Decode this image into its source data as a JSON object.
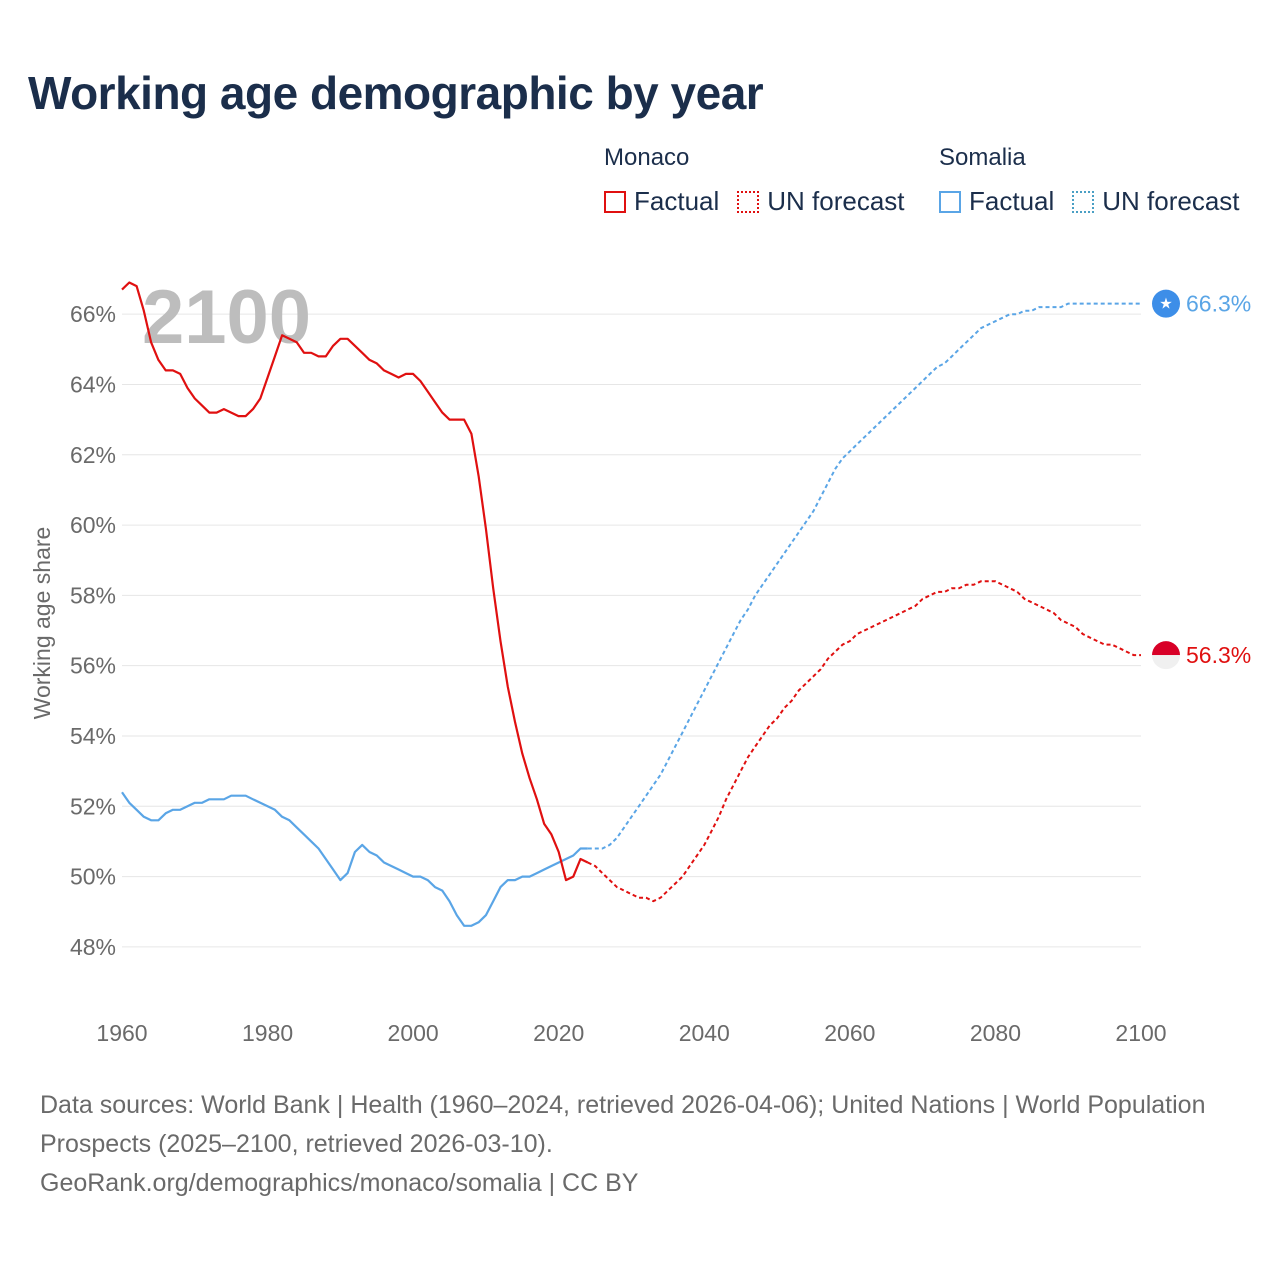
{
  "chart_data": {
    "type": "line",
    "title": "Working age demographic by year",
    "ylabel": "Working age share",
    "xlabel": "",
    "year_watermark": "2100",
    "xlim": [
      1960,
      2100
    ],
    "ylim": [
      47.2,
      67.2
    ],
    "x_ticks": [
      1960,
      1980,
      2000,
      2020,
      2040,
      2060,
      2080,
      2100
    ],
    "y_ticks": [
      48,
      50,
      52,
      54,
      56,
      58,
      60,
      62,
      64,
      66
    ],
    "y_tick_suffix": "%",
    "grid": true,
    "series": [
      {
        "name": "Monaco",
        "color": "#e01010",
        "flag_icon": "monaco-flag-icon",
        "end_label": "56.3%",
        "factual": [
          [
            1960,
            66.7
          ],
          [
            1961,
            66.9
          ],
          [
            1962,
            66.8
          ],
          [
            1963,
            66.1
          ],
          [
            1964,
            65.2
          ],
          [
            1965,
            64.7
          ],
          [
            1966,
            64.4
          ],
          [
            1967,
            64.4
          ],
          [
            1968,
            64.3
          ],
          [
            1969,
            63.9
          ],
          [
            1970,
            63.6
          ],
          [
            1971,
            63.4
          ],
          [
            1972,
            63.2
          ],
          [
            1973,
            63.2
          ],
          [
            1974,
            63.3
          ],
          [
            1975,
            63.2
          ],
          [
            1976,
            63.1
          ],
          [
            1977,
            63.1
          ],
          [
            1978,
            63.3
          ],
          [
            1979,
            63.6
          ],
          [
            1980,
            64.2
          ],
          [
            1981,
            64.8
          ],
          [
            1982,
            65.4
          ],
          [
            1983,
            65.3
          ],
          [
            1984,
            65.2
          ],
          [
            1985,
            64.9
          ],
          [
            1986,
            64.9
          ],
          [
            1987,
            64.8
          ],
          [
            1988,
            64.8
          ],
          [
            1989,
            65.1
          ],
          [
            1990,
            65.3
          ],
          [
            1991,
            65.3
          ],
          [
            1992,
            65.1
          ],
          [
            1993,
            64.9
          ],
          [
            1994,
            64.7
          ],
          [
            1995,
            64.6
          ],
          [
            1996,
            64.4
          ],
          [
            1997,
            64.3
          ],
          [
            1998,
            64.2
          ],
          [
            1999,
            64.3
          ],
          [
            2000,
            64.3
          ],
          [
            2001,
            64.1
          ],
          [
            2002,
            63.8
          ],
          [
            2003,
            63.5
          ],
          [
            2004,
            63.2
          ],
          [
            2005,
            63.0
          ],
          [
            2006,
            63.0
          ],
          [
            2007,
            63.0
          ],
          [
            2008,
            62.6
          ],
          [
            2009,
            61.4
          ],
          [
            2010,
            59.9
          ],
          [
            2011,
            58.2
          ],
          [
            2012,
            56.7
          ],
          [
            2013,
            55.4
          ],
          [
            2014,
            54.4
          ],
          [
            2015,
            53.5
          ],
          [
            2016,
            52.8
          ],
          [
            2017,
            52.2
          ],
          [
            2018,
            51.5
          ],
          [
            2019,
            51.2
          ],
          [
            2020,
            50.7
          ],
          [
            2021,
            49.9
          ],
          [
            2022,
            50.0
          ],
          [
            2023,
            50.5
          ],
          [
            2024,
            50.4
          ]
        ],
        "forecast": [
          [
            2024,
            50.4
          ],
          [
            2025,
            50.3
          ],
          [
            2026,
            50.1
          ],
          [
            2027,
            49.9
          ],
          [
            2028,
            49.7
          ],
          [
            2029,
            49.6
          ],
          [
            2030,
            49.5
          ],
          [
            2031,
            49.4
          ],
          [
            2032,
            49.4
          ],
          [
            2033,
            49.3
          ],
          [
            2034,
            49.4
          ],
          [
            2035,
            49.6
          ],
          [
            2036,
            49.8
          ],
          [
            2037,
            50.0
          ],
          [
            2038,
            50.3
          ],
          [
            2039,
            50.6
          ],
          [
            2040,
            50.9
          ],
          [
            2041,
            51.3
          ],
          [
            2042,
            51.7
          ],
          [
            2043,
            52.2
          ],
          [
            2044,
            52.6
          ],
          [
            2045,
            53.0
          ],
          [
            2046,
            53.4
          ],
          [
            2047,
            53.7
          ],
          [
            2048,
            54.0
          ],
          [
            2049,
            54.3
          ],
          [
            2050,
            54.5
          ],
          [
            2051,
            54.8
          ],
          [
            2052,
            55.0
          ],
          [
            2053,
            55.3
          ],
          [
            2054,
            55.5
          ],
          [
            2055,
            55.7
          ],
          [
            2056,
            55.9
          ],
          [
            2057,
            56.2
          ],
          [
            2058,
            56.4
          ],
          [
            2059,
            56.6
          ],
          [
            2060,
            56.7
          ],
          [
            2061,
            56.9
          ],
          [
            2062,
            57.0
          ],
          [
            2063,
            57.1
          ],
          [
            2064,
            57.2
          ],
          [
            2065,
            57.3
          ],
          [
            2066,
            57.4
          ],
          [
            2067,
            57.5
          ],
          [
            2068,
            57.6
          ],
          [
            2069,
            57.7
          ],
          [
            2070,
            57.9
          ],
          [
            2071,
            58.0
          ],
          [
            2072,
            58.1
          ],
          [
            2073,
            58.1
          ],
          [
            2074,
            58.2
          ],
          [
            2075,
            58.2
          ],
          [
            2076,
            58.3
          ],
          [
            2077,
            58.3
          ],
          [
            2078,
            58.4
          ],
          [
            2079,
            58.4
          ],
          [
            2080,
            58.4
          ],
          [
            2081,
            58.3
          ],
          [
            2082,
            58.2
          ],
          [
            2083,
            58.1
          ],
          [
            2084,
            57.9
          ],
          [
            2085,
            57.8
          ],
          [
            2086,
            57.7
          ],
          [
            2087,
            57.6
          ],
          [
            2088,
            57.5
          ],
          [
            2089,
            57.3
          ],
          [
            2090,
            57.2
          ],
          [
            2091,
            57.1
          ],
          [
            2092,
            56.9
          ],
          [
            2093,
            56.8
          ],
          [
            2094,
            56.7
          ],
          [
            2095,
            56.6
          ],
          [
            2096,
            56.6
          ],
          [
            2097,
            56.5
          ],
          [
            2098,
            56.4
          ],
          [
            2099,
            56.3
          ],
          [
            2100,
            56.3
          ]
        ]
      },
      {
        "name": "Somalia",
        "color": "#5aa5e6",
        "flag_icon": "somalia-flag-icon",
        "end_label": "66.3%",
        "factual": [
          [
            1960,
            52.4
          ],
          [
            1961,
            52.1
          ],
          [
            1962,
            51.9
          ],
          [
            1963,
            51.7
          ],
          [
            1964,
            51.6
          ],
          [
            1965,
            51.6
          ],
          [
            1966,
            51.8
          ],
          [
            1967,
            51.9
          ],
          [
            1968,
            51.9
          ],
          [
            1969,
            52.0
          ],
          [
            1970,
            52.1
          ],
          [
            1971,
            52.1
          ],
          [
            1972,
            52.2
          ],
          [
            1973,
            52.2
          ],
          [
            1974,
            52.2
          ],
          [
            1975,
            52.3
          ],
          [
            1976,
            52.3
          ],
          [
            1977,
            52.3
          ],
          [
            1978,
            52.2
          ],
          [
            1979,
            52.1
          ],
          [
            1980,
            52.0
          ],
          [
            1981,
            51.9
          ],
          [
            1982,
            51.7
          ],
          [
            1983,
            51.6
          ],
          [
            1984,
            51.4
          ],
          [
            1985,
            51.2
          ],
          [
            1986,
            51.0
          ],
          [
            1987,
            50.8
          ],
          [
            1988,
            50.5
          ],
          [
            1989,
            50.2
          ],
          [
            1990,
            49.9
          ],
          [
            1991,
            50.1
          ],
          [
            1992,
            50.7
          ],
          [
            1993,
            50.9
          ],
          [
            1994,
            50.7
          ],
          [
            1995,
            50.6
          ],
          [
            1996,
            50.4
          ],
          [
            1997,
            50.3
          ],
          [
            1998,
            50.2
          ],
          [
            1999,
            50.1
          ],
          [
            2000,
            50.0
          ],
          [
            2001,
            50.0
          ],
          [
            2002,
            49.9
          ],
          [
            2003,
            49.7
          ],
          [
            2004,
            49.6
          ],
          [
            2005,
            49.3
          ],
          [
            2006,
            48.9
          ],
          [
            2007,
            48.6
          ],
          [
            2008,
            48.6
          ],
          [
            2009,
            48.7
          ],
          [
            2010,
            48.9
          ],
          [
            2011,
            49.3
          ],
          [
            2012,
            49.7
          ],
          [
            2013,
            49.9
          ],
          [
            2014,
            49.9
          ],
          [
            2015,
            50.0
          ],
          [
            2016,
            50.0
          ],
          [
            2017,
            50.1
          ],
          [
            2018,
            50.2
          ],
          [
            2019,
            50.3
          ],
          [
            2020,
            50.4
          ],
          [
            2021,
            50.5
          ],
          [
            2022,
            50.6
          ],
          [
            2023,
            50.8
          ],
          [
            2024,
            50.8
          ]
        ],
        "forecast": [
          [
            2024,
            50.8
          ],
          [
            2025,
            50.8
          ],
          [
            2026,
            50.8
          ],
          [
            2027,
            50.9
          ],
          [
            2028,
            51.1
          ],
          [
            2029,
            51.4
          ],
          [
            2030,
            51.7
          ],
          [
            2031,
            52.0
          ],
          [
            2032,
            52.3
          ],
          [
            2033,
            52.6
          ],
          [
            2034,
            52.9
          ],
          [
            2035,
            53.3
          ],
          [
            2036,
            53.7
          ],
          [
            2037,
            54.1
          ],
          [
            2038,
            54.5
          ],
          [
            2039,
            54.9
          ],
          [
            2040,
            55.3
          ],
          [
            2041,
            55.7
          ],
          [
            2042,
            56.1
          ],
          [
            2043,
            56.5
          ],
          [
            2044,
            56.9
          ],
          [
            2045,
            57.3
          ],
          [
            2046,
            57.6
          ],
          [
            2047,
            58.0
          ],
          [
            2048,
            58.3
          ],
          [
            2049,
            58.6
          ],
          [
            2050,
            58.9
          ],
          [
            2051,
            59.2
          ],
          [
            2052,
            59.5
          ],
          [
            2053,
            59.8
          ],
          [
            2054,
            60.1
          ],
          [
            2055,
            60.4
          ],
          [
            2056,
            60.8
          ],
          [
            2057,
            61.2
          ],
          [
            2058,
            61.6
          ],
          [
            2059,
            61.9
          ],
          [
            2060,
            62.1
          ],
          [
            2061,
            62.3
          ],
          [
            2062,
            62.5
          ],
          [
            2063,
            62.7
          ],
          [
            2064,
            62.9
          ],
          [
            2065,
            63.1
          ],
          [
            2066,
            63.3
          ],
          [
            2067,
            63.5
          ],
          [
            2068,
            63.7
          ],
          [
            2069,
            63.9
          ],
          [
            2070,
            64.1
          ],
          [
            2071,
            64.3
          ],
          [
            2072,
            64.5
          ],
          [
            2073,
            64.6
          ],
          [
            2074,
            64.8
          ],
          [
            2075,
            65.0
          ],
          [
            2076,
            65.2
          ],
          [
            2077,
            65.4
          ],
          [
            2078,
            65.6
          ],
          [
            2079,
            65.7
          ],
          [
            2080,
            65.8
          ],
          [
            2081,
            65.9
          ],
          [
            2082,
            66.0
          ],
          [
            2083,
            66.0
          ],
          [
            2084,
            66.1
          ],
          [
            2085,
            66.1
          ],
          [
            2086,
            66.2
          ],
          [
            2087,
            66.2
          ],
          [
            2088,
            66.2
          ],
          [
            2089,
            66.2
          ],
          [
            2090,
            66.3
          ],
          [
            2091,
            66.3
          ],
          [
            2092,
            66.3
          ],
          [
            2093,
            66.3
          ],
          [
            2094,
            66.3
          ],
          [
            2095,
            66.3
          ],
          [
            2096,
            66.3
          ],
          [
            2097,
            66.3
          ],
          [
            2098,
            66.3
          ],
          [
            2099,
            66.3
          ],
          [
            2100,
            66.3
          ]
        ]
      }
    ]
  },
  "legend": {
    "factual_label": "Factual",
    "forecast_label": "UN forecast",
    "monaco_label": "Monaco",
    "somalia_label": "Somalia"
  },
  "footer": {
    "sources": "Data sources: World Bank | Health (1960–2024, retrieved 2026-04-06); United Nations | World Population Prospects (2025–2100, retrieved 2026-03-10).",
    "credit": "GeoRank.org/demographics/monaco/somalia | CC BY"
  },
  "colors": {
    "monaco": "#e01010",
    "somalia": "#5aa5e6",
    "somalia_forecast": "#4a9fc4",
    "title": "#1b2e4b",
    "axis_text": "#6a6a6a",
    "watermark": "#bdbdbd",
    "grid": "#e6e6e6"
  }
}
